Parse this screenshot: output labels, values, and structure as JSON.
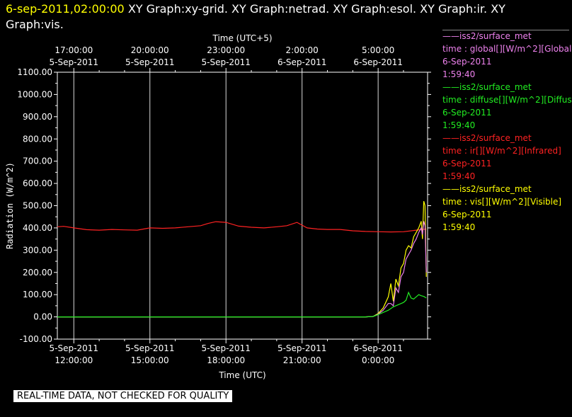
{
  "header": {
    "timestamp": "6-sep-2011,02:00:00",
    "graphs": " XY Graph:xy-grid.  XY Graph:netrad.  XY Graph:esol.  XY Graph:ir.  XY Graph:vis."
  },
  "legend": [
    {
      "station": "iss2/surface_met",
      "field": "time : global[][W/m^2][Global",
      "date": "6-Sep-2011",
      "time": "1:59:40",
      "color": "#ee82ee"
    },
    {
      "station": "iss2/surface_met",
      "field": "time : diffuse[][W/m^2][Diffus",
      "date": "6-Sep-2011",
      "time": "1:59:40",
      "color": "#22ee22"
    },
    {
      "station": "iss2/surface_met",
      "field": "time : ir[][W/m^2][Infrared]",
      "date": "6-Sep-2011",
      "time": "1:59:40",
      "color": "#ff2222"
    },
    {
      "station": "iss2/surface_met",
      "field": "time : vis[][W/m^2][Visible]",
      "date": "6-Sep-2011",
      "time": "1:59:40",
      "color": "#ffff00"
    }
  ],
  "notice": "REAL-TIME DATA, NOT CHECKED FOR QUALITY",
  "chart_data": {
    "type": "line",
    "ylabel": "Radiation (W/m^2)",
    "xlabel_bottom": "Time (UTC)",
    "xlabel_top": "Time (UTC+5)",
    "ylim": [
      -100,
      1100
    ],
    "xlim_hours": [
      11.35,
      25.95
    ],
    "grid": true,
    "y_ticks": [
      {
        "value": -100,
        "label": "-100.00"
      },
      {
        "value": 0,
        "label": "0.00"
      },
      {
        "value": 100,
        "label": "100.00"
      },
      {
        "value": 200,
        "label": "200.00"
      },
      {
        "value": 300,
        "label": "300.00"
      },
      {
        "value": 400,
        "label": "400.00"
      },
      {
        "value": 500,
        "label": "500.00"
      },
      {
        "value": 600,
        "label": "600.00"
      },
      {
        "value": 700,
        "label": "700.00"
      },
      {
        "value": 800,
        "label": "800.00"
      },
      {
        "value": 900,
        "label": "900.00"
      },
      {
        "value": 1000,
        "label": "1000.00"
      },
      {
        "value": 1100,
        "label": "1100.00"
      }
    ],
    "x_ticks_bottom": [
      {
        "hour": 12,
        "date": "5-Sep-2011",
        "time": "12:00:00"
      },
      {
        "hour": 15,
        "date": "5-Sep-2011",
        "time": "15:00:00"
      },
      {
        "hour": 18,
        "date": "5-Sep-2011",
        "time": "18:00:00"
      },
      {
        "hour": 21,
        "date": "5-Sep-2011",
        "time": "21:00:00"
      },
      {
        "hour": 24,
        "date": "6-Sep-2011",
        "time": "0:00:00"
      }
    ],
    "x_ticks_top": [
      {
        "hour": 12,
        "date": "5-Sep-2011",
        "time": "17:00:00"
      },
      {
        "hour": 15,
        "date": "5-Sep-2011",
        "time": "20:00:00"
      },
      {
        "hour": 18,
        "date": "5-Sep-2011",
        "time": "23:00:00"
      },
      {
        "hour": 21,
        "date": "6-Sep-2011",
        "time": "2:00:00"
      },
      {
        "hour": 24,
        "date": "6-Sep-2011",
        "time": "5:00:00"
      }
    ],
    "series": [
      {
        "name": "ir",
        "color": "#ff2222",
        "x": [
          11.35,
          11.6,
          12.0,
          12.5,
          13.0,
          13.5,
          14.0,
          14.5,
          15.0,
          15.5,
          16.0,
          16.5,
          17.0,
          17.3,
          17.6,
          18.0,
          18.5,
          19.0,
          19.5,
          20.0,
          20.4,
          20.8,
          21.2,
          21.6,
          22.0,
          22.5,
          23.0,
          23.5,
          24.0,
          24.5,
          25.0,
          25.5,
          25.9
        ],
        "y": [
          405,
          407,
          400,
          392,
          390,
          393,
          391,
          390,
          400,
          398,
          400,
          405,
          410,
          420,
          428,
          425,
          408,
          403,
          400,
          405,
          410,
          425,
          400,
          395,
          393,
          393,
          387,
          384,
          383,
          382,
          383,
          390,
          395
        ]
      },
      {
        "name": "vis",
        "color": "#ffff00",
        "x": [
          11.35,
          23.5,
          23.8,
          24.0,
          24.2,
          24.4,
          24.5,
          24.6,
          24.7,
          24.8,
          24.9,
          25.0,
          25.1,
          25.2,
          25.3,
          25.4,
          25.5,
          25.6,
          25.7,
          25.75,
          25.8,
          25.85,
          25.9
        ],
        "y": [
          0,
          0,
          2,
          15,
          40,
          90,
          150,
          70,
          170,
          140,
          220,
          240,
          300,
          320,
          310,
          360,
          380,
          400,
          430,
          350,
          520,
          500,
          180
        ]
      },
      {
        "name": "global",
        "color": "#ee82ee",
        "x": [
          11.35,
          23.5,
          23.8,
          24.0,
          24.2,
          24.4,
          24.5,
          24.6,
          24.7,
          24.8,
          24.9,
          25.0,
          25.1,
          25.2,
          25.3,
          25.4,
          25.5,
          25.6,
          25.7,
          25.75,
          25.8,
          25.85,
          25.9
        ],
        "y": [
          0,
          0,
          2,
          12,
          30,
          60,
          60,
          50,
          130,
          110,
          180,
          200,
          260,
          280,
          300,
          330,
          350,
          380,
          400,
          370,
          430,
          410,
          200
        ]
      },
      {
        "name": "diffuse",
        "color": "#22ee22",
        "x": [
          11.35,
          23.5,
          23.8,
          24.0,
          24.2,
          24.4,
          24.6,
          24.8,
          25.0,
          25.1,
          25.2,
          25.3,
          25.4,
          25.5,
          25.6,
          25.7,
          25.8,
          25.9
        ],
        "y": [
          0,
          0,
          2,
          10,
          20,
          30,
          45,
          55,
          65,
          75,
          110,
          85,
          80,
          90,
          100,
          95,
          92,
          85
        ]
      }
    ]
  }
}
